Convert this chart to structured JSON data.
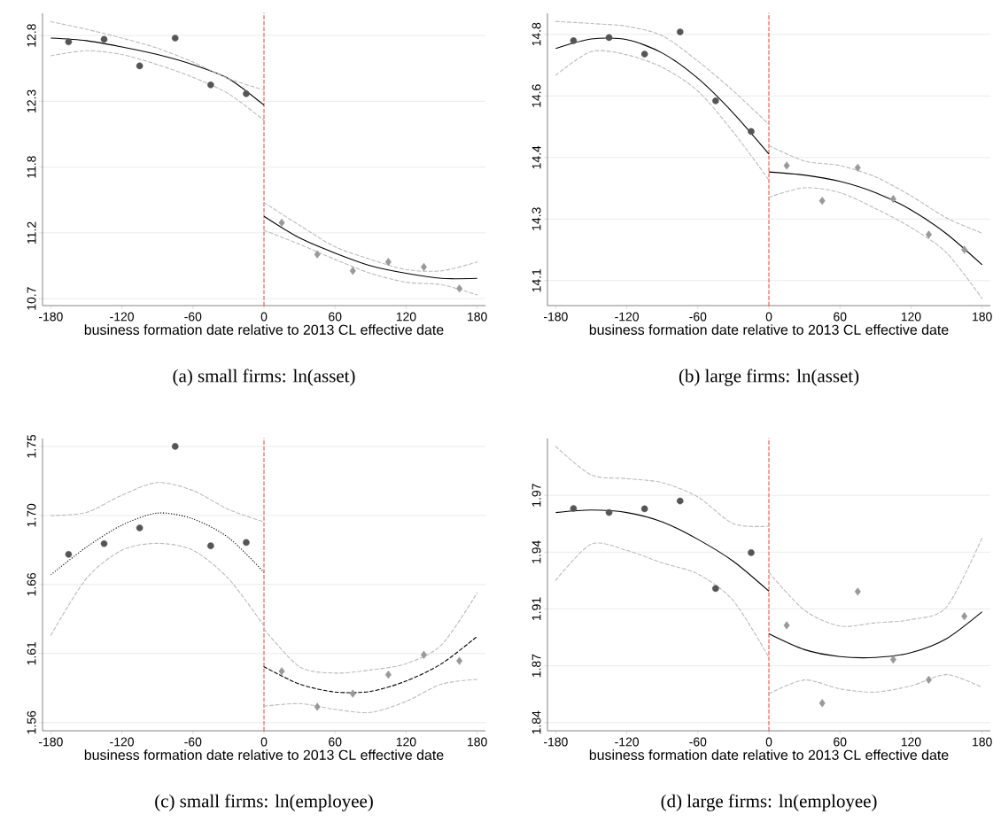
{
  "chart_data": [
    {
      "type": "scatter",
      "title": "(a) small firms: ln(asset)",
      "xlabel": "business formation date relative to 2013 CL effective date",
      "xlim": [
        -187,
        187
      ],
      "xticks": [
        -180,
        -120,
        -60,
        0,
        60,
        120,
        180
      ],
      "ylim": [
        10.665,
        12.976
      ],
      "yticks": [
        {
          "value": 10.72,
          "label": "10.7"
        },
        {
          "value": 11.24,
          "label": "11.2"
        },
        {
          "value": 11.76,
          "label": "11.8"
        },
        {
          "value": 12.28,
          "label": "12.3"
        },
        {
          "value": 12.8,
          "label": "12.8"
        }
      ],
      "grid": "y",
      "ref_lines": [
        {
          "axis": "x",
          "value": 0,
          "color": "#e8473a",
          "line_style": "dashed"
        }
      ],
      "series": [
        {
          "marker": "circle",
          "color": "#555555",
          "x": [
            -165,
            -135,
            -105,
            -75,
            -45,
            -15
          ],
          "values": [
            12.75,
            12.77,
            12.56,
            12.78,
            12.41,
            12.34
          ]
        },
        {
          "marker": "diamond",
          "color": "#999999",
          "x": [
            15,
            45,
            75,
            105,
            135,
            165
          ],
          "values": [
            11.32,
            11.07,
            10.94,
            11.01,
            10.97,
            10.8
          ]
        },
        {
          "type": "line",
          "marker": "none",
          "line_style": "solid",
          "color": "#000000",
          "x": [
            -180,
            -150,
            -120,
            -90,
            -60,
            -30,
            0
          ],
          "values": [
            12.78,
            12.76,
            12.71,
            12.65,
            12.57,
            12.46,
            12.25
          ]
        },
        {
          "type": "line",
          "marker": "none",
          "line_style": "dashed",
          "color": "#bbbbbb",
          "x": [
            -180,
            -150,
            -120,
            -90,
            -60,
            -30,
            0
          ],
          "values": [
            12.91,
            12.85,
            12.78,
            12.7,
            12.59,
            12.46,
            12.37
          ]
        },
        {
          "type": "line",
          "marker": "none",
          "line_style": "dashed",
          "color": "#bbbbbb",
          "x": [
            -180,
            -150,
            -120,
            -90,
            -60,
            -30,
            0
          ],
          "values": [
            12.64,
            12.68,
            12.65,
            12.57,
            12.47,
            12.34,
            12.13
          ]
        },
        {
          "type": "line",
          "marker": "none",
          "line_style": "solid",
          "color": "#000000",
          "x": [
            0,
            30,
            60,
            90,
            120,
            150,
            180
          ],
          "values": [
            11.37,
            11.2,
            11.08,
            10.98,
            10.92,
            10.88,
            10.88
          ]
        },
        {
          "type": "line",
          "marker": "none",
          "line_style": "dashed",
          "color": "#bbbbbb",
          "x": [
            0,
            30,
            60,
            90,
            120,
            150,
            180
          ],
          "values": [
            11.48,
            11.3,
            11.13,
            11.03,
            10.95,
            10.94,
            11.01
          ]
        },
        {
          "type": "line",
          "marker": "none",
          "line_style": "dashed",
          "color": "#bbbbbb",
          "x": [
            0,
            30,
            60,
            90,
            120,
            150,
            180
          ],
          "values": [
            11.26,
            11.15,
            11.03,
            10.92,
            10.85,
            10.83,
            10.75
          ]
        }
      ]
    },
    {
      "type": "scatter",
      "title": "(b) large firms: ln(asset)",
      "xlabel": "business formation date relative to 2013 CL effective date",
      "xlim": [
        -187,
        187
      ],
      "xticks": [
        -180,
        -120,
        -60,
        0,
        60,
        120,
        180
      ],
      "ylim": [
        14.009,
        14.84
      ],
      "yticks": [
        {
          "value": 14.08,
          "label": "14.1"
        },
        {
          "value": 14.255,
          "label": "14.3"
        },
        {
          "value": 14.43,
          "label": "14.4"
        },
        {
          "value": 14.605,
          "label": "14.6"
        },
        {
          "value": 14.78,
          "label": "14.8"
        }
      ],
      "grid": "y",
      "ref_lines": [
        {
          "axis": "x",
          "value": 0,
          "color": "#e8473a",
          "line_style": "dashed"
        }
      ],
      "series": [
        {
          "marker": "circle",
          "color": "#555555",
          "x": [
            -165,
            -135,
            -105,
            -75,
            -45,
            -15
          ],
          "values": [
            14.762,
            14.771,
            14.724,
            14.787,
            14.591,
            14.504
          ]
        },
        {
          "marker": "diamond",
          "color": "#999999",
          "x": [
            15,
            45,
            75,
            105,
            135,
            165
          ],
          "values": [
            14.407,
            14.307,
            14.401,
            14.312,
            14.211,
            14.168
          ]
        },
        {
          "type": "line",
          "marker": "none",
          "line_style": "solid",
          "color": "#000000",
          "x": [
            -180,
            -150,
            -120,
            -90,
            -60,
            -30,
            0
          ],
          "values": [
            14.74,
            14.767,
            14.765,
            14.727,
            14.655,
            14.556,
            14.44
          ]
        },
        {
          "type": "line",
          "marker": "none",
          "line_style": "dashed",
          "color": "#bbbbbb",
          "x": [
            -180,
            -150,
            -120,
            -90,
            -60,
            -30,
            0
          ],
          "values": [
            14.817,
            14.811,
            14.803,
            14.776,
            14.704,
            14.619,
            14.524
          ]
        },
        {
          "type": "line",
          "marker": "none",
          "line_style": "dashed",
          "color": "#bbbbbb",
          "x": [
            -180,
            -150,
            -120,
            -90,
            -60,
            -30,
            0
          ],
          "values": [
            14.664,
            14.731,
            14.722,
            14.686,
            14.619,
            14.502,
            14.366
          ]
        },
        {
          "type": "line",
          "marker": "none",
          "line_style": "solid",
          "color": "#000000",
          "x": [
            0,
            30,
            60,
            90,
            120,
            150,
            180
          ],
          "values": [
            14.389,
            14.38,
            14.362,
            14.33,
            14.281,
            14.213,
            14.125
          ]
        },
        {
          "type": "line",
          "marker": "none",
          "line_style": "dashed",
          "color": "#bbbbbb",
          "x": [
            0,
            30,
            60,
            90,
            120,
            150,
            180
          ],
          "values": [
            14.464,
            14.42,
            14.407,
            14.375,
            14.321,
            14.258,
            14.215
          ]
        },
        {
          "type": "line",
          "marker": "none",
          "line_style": "dashed",
          "color": "#bbbbbb",
          "x": [
            0,
            30,
            60,
            90,
            120,
            150,
            180
          ],
          "values": [
            14.317,
            14.344,
            14.33,
            14.285,
            14.231,
            14.159,
            14.029
          ]
        }
      ]
    },
    {
      "type": "scatter",
      "title": "(c) small firms: ln(employee)",
      "xlabel": "business formation date relative to 2013 CL effective date",
      "xlim": [
        -187,
        187
      ],
      "xticks": [
        -180,
        -120,
        -60,
        0,
        60,
        120,
        180
      ],
      "ylim": [
        1.5564,
        1.7554
      ],
      "yticks": [
        {
          "value": 1.562,
          "label": "1.56"
        },
        {
          "value": 1.609,
          "label": "1.61"
        },
        {
          "value": 1.656,
          "label": "1.66"
        },
        {
          "value": 1.703,
          "label": "1.70"
        },
        {
          "value": 1.75,
          "label": "1.75"
        }
      ],
      "grid": "y",
      "ref_lines": [
        {
          "axis": "x",
          "value": 0,
          "color": "#e8473a",
          "line_style": "dashed"
        }
      ],
      "series": [
        {
          "marker": "circle",
          "color": "#555555",
          "x": [
            -165,
            -135,
            -105,
            -75,
            -45,
            -15
          ],
          "values": [
            1.6765,
            1.6838,
            1.6945,
            1.75,
            1.6823,
            1.6846
          ]
        },
        {
          "marker": "diamond",
          "color": "#999999",
          "x": [
            15,
            45,
            75,
            105,
            135,
            165
          ],
          "values": [
            1.5969,
            1.5727,
            1.5817,
            1.5946,
            1.6081,
            1.604
          ]
        },
        {
          "type": "line",
          "marker": "none",
          "line_style": "dotted",
          "color": "#000000",
          "x": [
            -180,
            -150,
            -120,
            -90,
            -60,
            -30,
            0
          ],
          "values": [
            1.6626,
            1.6814,
            1.6964,
            1.7046,
            1.7007,
            1.6879,
            1.6643
          ]
        },
        {
          "type": "line",
          "marker": "none",
          "line_style": "dashed",
          "color": "#bbbbbb",
          "x": [
            -180,
            -150,
            -120,
            -90,
            -60,
            -30,
            0
          ],
          "values": [
            1.7029,
            1.705,
            1.7168,
            1.7254,
            1.72,
            1.7071,
            1.6986
          ]
        },
        {
          "type": "line",
          "marker": "none",
          "line_style": "dashed",
          "color": "#bbbbbb",
          "x": [
            -180,
            -150,
            -120,
            -90,
            -60,
            -30,
            0
          ],
          "values": [
            1.6214,
            1.66,
            1.6793,
            1.684,
            1.6793,
            1.66,
            1.6278
          ]
        },
        {
          "type": "line",
          "marker": "none",
          "line_style": "dashed",
          "color": "#000000",
          "x": [
            0,
            30,
            60,
            90,
            120,
            150,
            180
          ],
          "values": [
            1.6,
            1.5882,
            1.5828,
            1.5832,
            1.5903,
            1.6021,
            1.6207
          ]
        },
        {
          "type": "line",
          "marker": "none",
          "line_style": "dashed",
          "color": "#bbbbbb",
          "x": [
            0,
            30,
            60,
            90,
            120,
            150,
            180
          ],
          "values": [
            1.6257,
            1.6,
            1.5957,
            1.5978,
            1.6021,
            1.615,
            1.6503
          ]
        },
        {
          "type": "line",
          "marker": "none",
          "line_style": "dashed",
          "color": "#bbbbbb",
          "x": [
            0,
            30,
            60,
            90,
            120,
            150,
            180
          ],
          "values": [
            1.5731,
            1.5749,
            1.571,
            1.5689,
            1.5764,
            1.5882,
            1.5914
          ]
        }
      ]
    },
    {
      "type": "scatter",
      "title": "(d) large firms: ln(employee)",
      "xlabel": "business formation date relative to 2013 CL effective date",
      "xlim": [
        -187,
        187
      ],
      "xticks": [
        -180,
        -120,
        -60,
        0,
        60,
        120,
        180
      ],
      "ylim": [
        1.8374,
        2.002
      ],
      "yticks": [
        {
          "value": 1.842,
          "label": "1.84"
        },
        {
          "value": 1.874,
          "label": "1.87"
        },
        {
          "value": 1.906,
          "label": "1.91"
        },
        {
          "value": 1.938,
          "label": "1.94"
        },
        {
          "value": 1.97,
          "label": "1.97"
        }
      ],
      "grid": "y",
      "ref_lines": [
        {
          "axis": "x",
          "value": 0,
          "color": "#e8473a",
          "line_style": "dashed"
        }
      ],
      "series": [
        {
          "marker": "circle",
          "color": "#555555",
          "x": [
            -165,
            -135,
            -105,
            -75,
            -45,
            -15
          ],
          "values": [
            1.9626,
            1.9603,
            1.9624,
            1.9668,
            1.9175,
            1.9377
          ]
        },
        {
          "marker": "diamond",
          "color": "#999999",
          "x": [
            15,
            45,
            75,
            105,
            135,
            165
          ],
          "values": [
            1.8968,
            1.853,
            1.9158,
            1.8775,
            1.8661,
            1.9019
          ]
        },
        {
          "type": "line",
          "marker": "none",
          "line_style": "solid",
          "color": "#000000",
          "x": [
            -180,
            -150,
            -120,
            -90,
            -60,
            -30,
            0
          ],
          "values": [
            1.9603,
            1.9617,
            1.9603,
            1.955,
            1.9452,
            1.9328,
            1.916
          ]
        },
        {
          "type": "line",
          "marker": "none",
          "line_style": "dashed",
          "color": "#bbbbbb",
          "x": [
            -180,
            -150,
            -120,
            -90,
            -60,
            -30,
            0
          ],
          "values": [
            1.9975,
            1.9815,
            1.9794,
            1.9771,
            1.9691,
            1.954,
            1.9526
          ]
        },
        {
          "type": "line",
          "marker": "none",
          "line_style": "dashed",
          "color": "#bbbbbb",
          "x": [
            -180,
            -150,
            -120,
            -90,
            -60,
            -30,
            0
          ],
          "values": [
            1.9221,
            1.9425,
            1.939,
            1.9319,
            1.9257,
            1.9106,
            1.8787
          ]
        },
        {
          "type": "line",
          "marker": "none",
          "line_style": "solid",
          "color": "#000000",
          "x": [
            0,
            30,
            60,
            90,
            120,
            150,
            180
          ],
          "values": [
            1.892,
            1.8831,
            1.8792,
            1.8787,
            1.8814,
            1.8893,
            1.9044
          ]
        },
        {
          "type": "line",
          "marker": "none",
          "line_style": "dashed",
          "color": "#bbbbbb",
          "x": [
            0,
            30,
            60,
            90,
            120,
            150,
            180
          ],
          "values": [
            1.9266,
            1.9053,
            1.8964,
            1.8982,
            1.9,
            1.9071,
            1.9461
          ]
        },
        {
          "type": "line",
          "marker": "none",
          "line_style": "dashed",
          "color": "#bbbbbb",
          "x": [
            0,
            30,
            60,
            90,
            120,
            150,
            180
          ],
          "values": [
            1.8583,
            1.866,
            1.861,
            1.8592,
            1.8627,
            1.869,
            1.8619
          ]
        }
      ]
    }
  ]
}
